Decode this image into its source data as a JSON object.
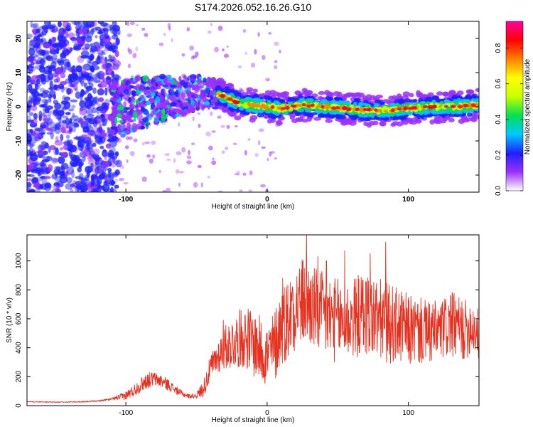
{
  "page": {
    "title": "S174.2026.052.16.26.G10"
  },
  "chart_data": [
    {
      "id": "spectrogram",
      "type": "heatmap",
      "title": "S174.2026.052.16.26.G10",
      "xlabel": "Height of straight line (km)",
      "ylabel": "Frequency (Hz)",
      "xlim": [
        -170,
        150
      ],
      "ylim": [
        -25,
        25
      ],
      "xticks": [
        -100,
        0,
        100
      ],
      "xtick_labels": [
        "-100",
        "0",
        "100"
      ],
      "yticks": [
        -20,
        -10,
        0,
        10,
        20
      ],
      "ytick_labels": [
        "-20",
        "-10",
        "0",
        "10",
        "20"
      ],
      "grid": false,
      "ridge": {
        "x": [
          -170,
          -150,
          -125,
          -110,
          -95,
          -80,
          -65,
          -50,
          -40,
          -30,
          -20,
          -10,
          0,
          10,
          25,
          40,
          55,
          70,
          85,
          100,
          115,
          130,
          150
        ],
        "frequency": [
          0,
          0,
          -3,
          -2,
          1,
          2,
          3,
          4,
          4,
          3,
          1,
          0.5,
          0,
          -0.5,
          0.5,
          0,
          -0.5,
          -1,
          -1,
          -0.5,
          0,
          0,
          0.5
        ]
      },
      "colorbar": {
        "label": "Normalized spectral amplitude",
        "range": [
          0,
          0.95
        ],
        "ticks": [
          0.0,
          0.2,
          0.4,
          0.6,
          0.8
        ],
        "tick_labels": [
          "0.0",
          "0.2",
          "0.4",
          "0.6",
          "0.8"
        ],
        "colors": [
          "#ffffff",
          "#9b30ff",
          "#2020ff",
          "#00c8ff",
          "#00e050",
          "#c8ff00",
          "#ffff00",
          "#ff8000",
          "#ff0000",
          "#ff00a0"
        ]
      }
    },
    {
      "id": "snr",
      "type": "line",
      "xlabel": "Height of straight line (km)",
      "ylabel": "SNR (10 * v/v)",
      "xlim": [
        -170,
        150
      ],
      "ylim": [
        0,
        1180
      ],
      "xticks": [
        -100,
        0,
        100
      ],
      "xtick_labels": [
        "-100",
        "0",
        "100"
      ],
      "yticks": [
        0,
        200,
        400,
        600,
        800,
        1000
      ],
      "ytick_labels": [
        "0",
        "200",
        "400",
        "600",
        "800",
        "1000"
      ],
      "grid": false,
      "line_color": "#e8301e",
      "x": [
        -170,
        -160,
        -150,
        -140,
        -130,
        -120,
        -110,
        -100,
        -95,
        -90,
        -85,
        -80,
        -75,
        -70,
        -65,
        -60,
        -55,
        -50,
        -45,
        -40,
        -35,
        -30,
        -25,
        -20,
        -15,
        -10,
        -5,
        0,
        5,
        10,
        15,
        20,
        25,
        30,
        35,
        40,
        45,
        50,
        55,
        60,
        65,
        70,
        75,
        80,
        85,
        90,
        95,
        100,
        105,
        110,
        115,
        120,
        125,
        130,
        135,
        140,
        145,
        150
      ],
      "y": [
        28,
        26,
        24,
        25,
        27,
        32,
        45,
        70,
        100,
        140,
        175,
        185,
        170,
        145,
        110,
        80,
        65,
        70,
        120,
        260,
        340,
        400,
        430,
        460,
        480,
        430,
        390,
        350,
        400,
        560,
        600,
        690,
        720,
        700,
        650,
        620,
        600,
        590,
        580,
        600,
        620,
        640,
        610,
        590,
        570,
        560,
        540,
        520,
        520,
        510,
        500,
        510,
        530,
        560,
        540,
        520,
        560,
        480
      ],
      "spread": [
        3,
        3,
        3,
        3,
        4,
        5,
        8,
        30,
        40,
        50,
        55,
        50,
        45,
        40,
        30,
        20,
        15,
        20,
        60,
        90,
        120,
        150,
        180,
        200,
        220,
        230,
        230,
        220,
        260,
        280,
        290,
        300,
        310,
        300,
        300,
        300,
        300,
        290,
        280,
        280,
        290,
        300,
        300,
        290,
        280,
        270,
        260,
        250,
        240,
        230,
        220,
        220,
        220,
        230,
        220,
        210,
        200,
        180
      ],
      "peaks": [
        {
          "x": 28,
          "y": 1180
        },
        {
          "x": 36,
          "y": 1030
        },
        {
          "x": 42,
          "y": 1000
        },
        {
          "x": 55,
          "y": 1070
        },
        {
          "x": 73,
          "y": 1050
        },
        {
          "x": 84,
          "y": 1130
        },
        {
          "x": 11,
          "y": 880
        },
        {
          "x": 18,
          "y": 820
        },
        {
          "x": 130,
          "y": 760
        },
        {
          "x": -31,
          "y": 590
        },
        {
          "x": -12,
          "y": 530
        }
      ]
    }
  ]
}
